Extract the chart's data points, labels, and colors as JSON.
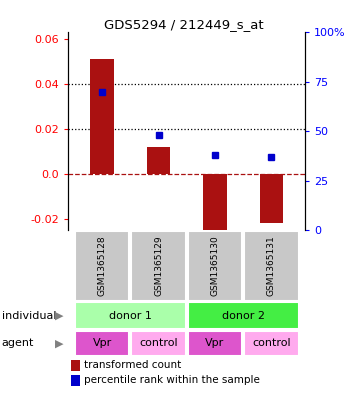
{
  "title": "GDS5294 / 212449_s_at",
  "samples": [
    "GSM1365128",
    "GSM1365129",
    "GSM1365130",
    "GSM1365131"
  ],
  "bar_values": [
    0.051,
    0.012,
    -0.025,
    -0.022
  ],
  "dot_pct": [
    70,
    48,
    38,
    37
  ],
  "bar_color": "#aa1111",
  "dot_color": "#0000cc",
  "ylim_left": [
    -0.025,
    0.063
  ],
  "ylim_right": [
    0,
    100
  ],
  "yticks_left": [
    -0.02,
    0.0,
    0.02,
    0.04,
    0.06
  ],
  "yticks_right": [
    0,
    25,
    50,
    75,
    100
  ],
  "ytick_labels_right": [
    "0",
    "25",
    "50",
    "75",
    "100%"
  ],
  "hline_y": 0.0,
  "dotted_lines": [
    0.02,
    0.04
  ],
  "sample_box_color": "#c8c8c8",
  "indiv_colors": [
    "#aaffaa",
    "#44ee44"
  ],
  "indiv_labels": [
    "donor 1",
    "donor 2"
  ],
  "agent_color_vpr": "#dd55cc",
  "agent_color_ctrl": "#ffaaee",
  "agent_labels": [
    "Vpr",
    "control",
    "Vpr",
    "control"
  ],
  "label_individual": "individual",
  "label_agent": "agent",
  "legend_bar": "transformed count",
  "legend_dot": "percentile rank within the sample",
  "bar_width": 0.42,
  "x_positions": [
    0,
    1,
    2,
    3
  ]
}
